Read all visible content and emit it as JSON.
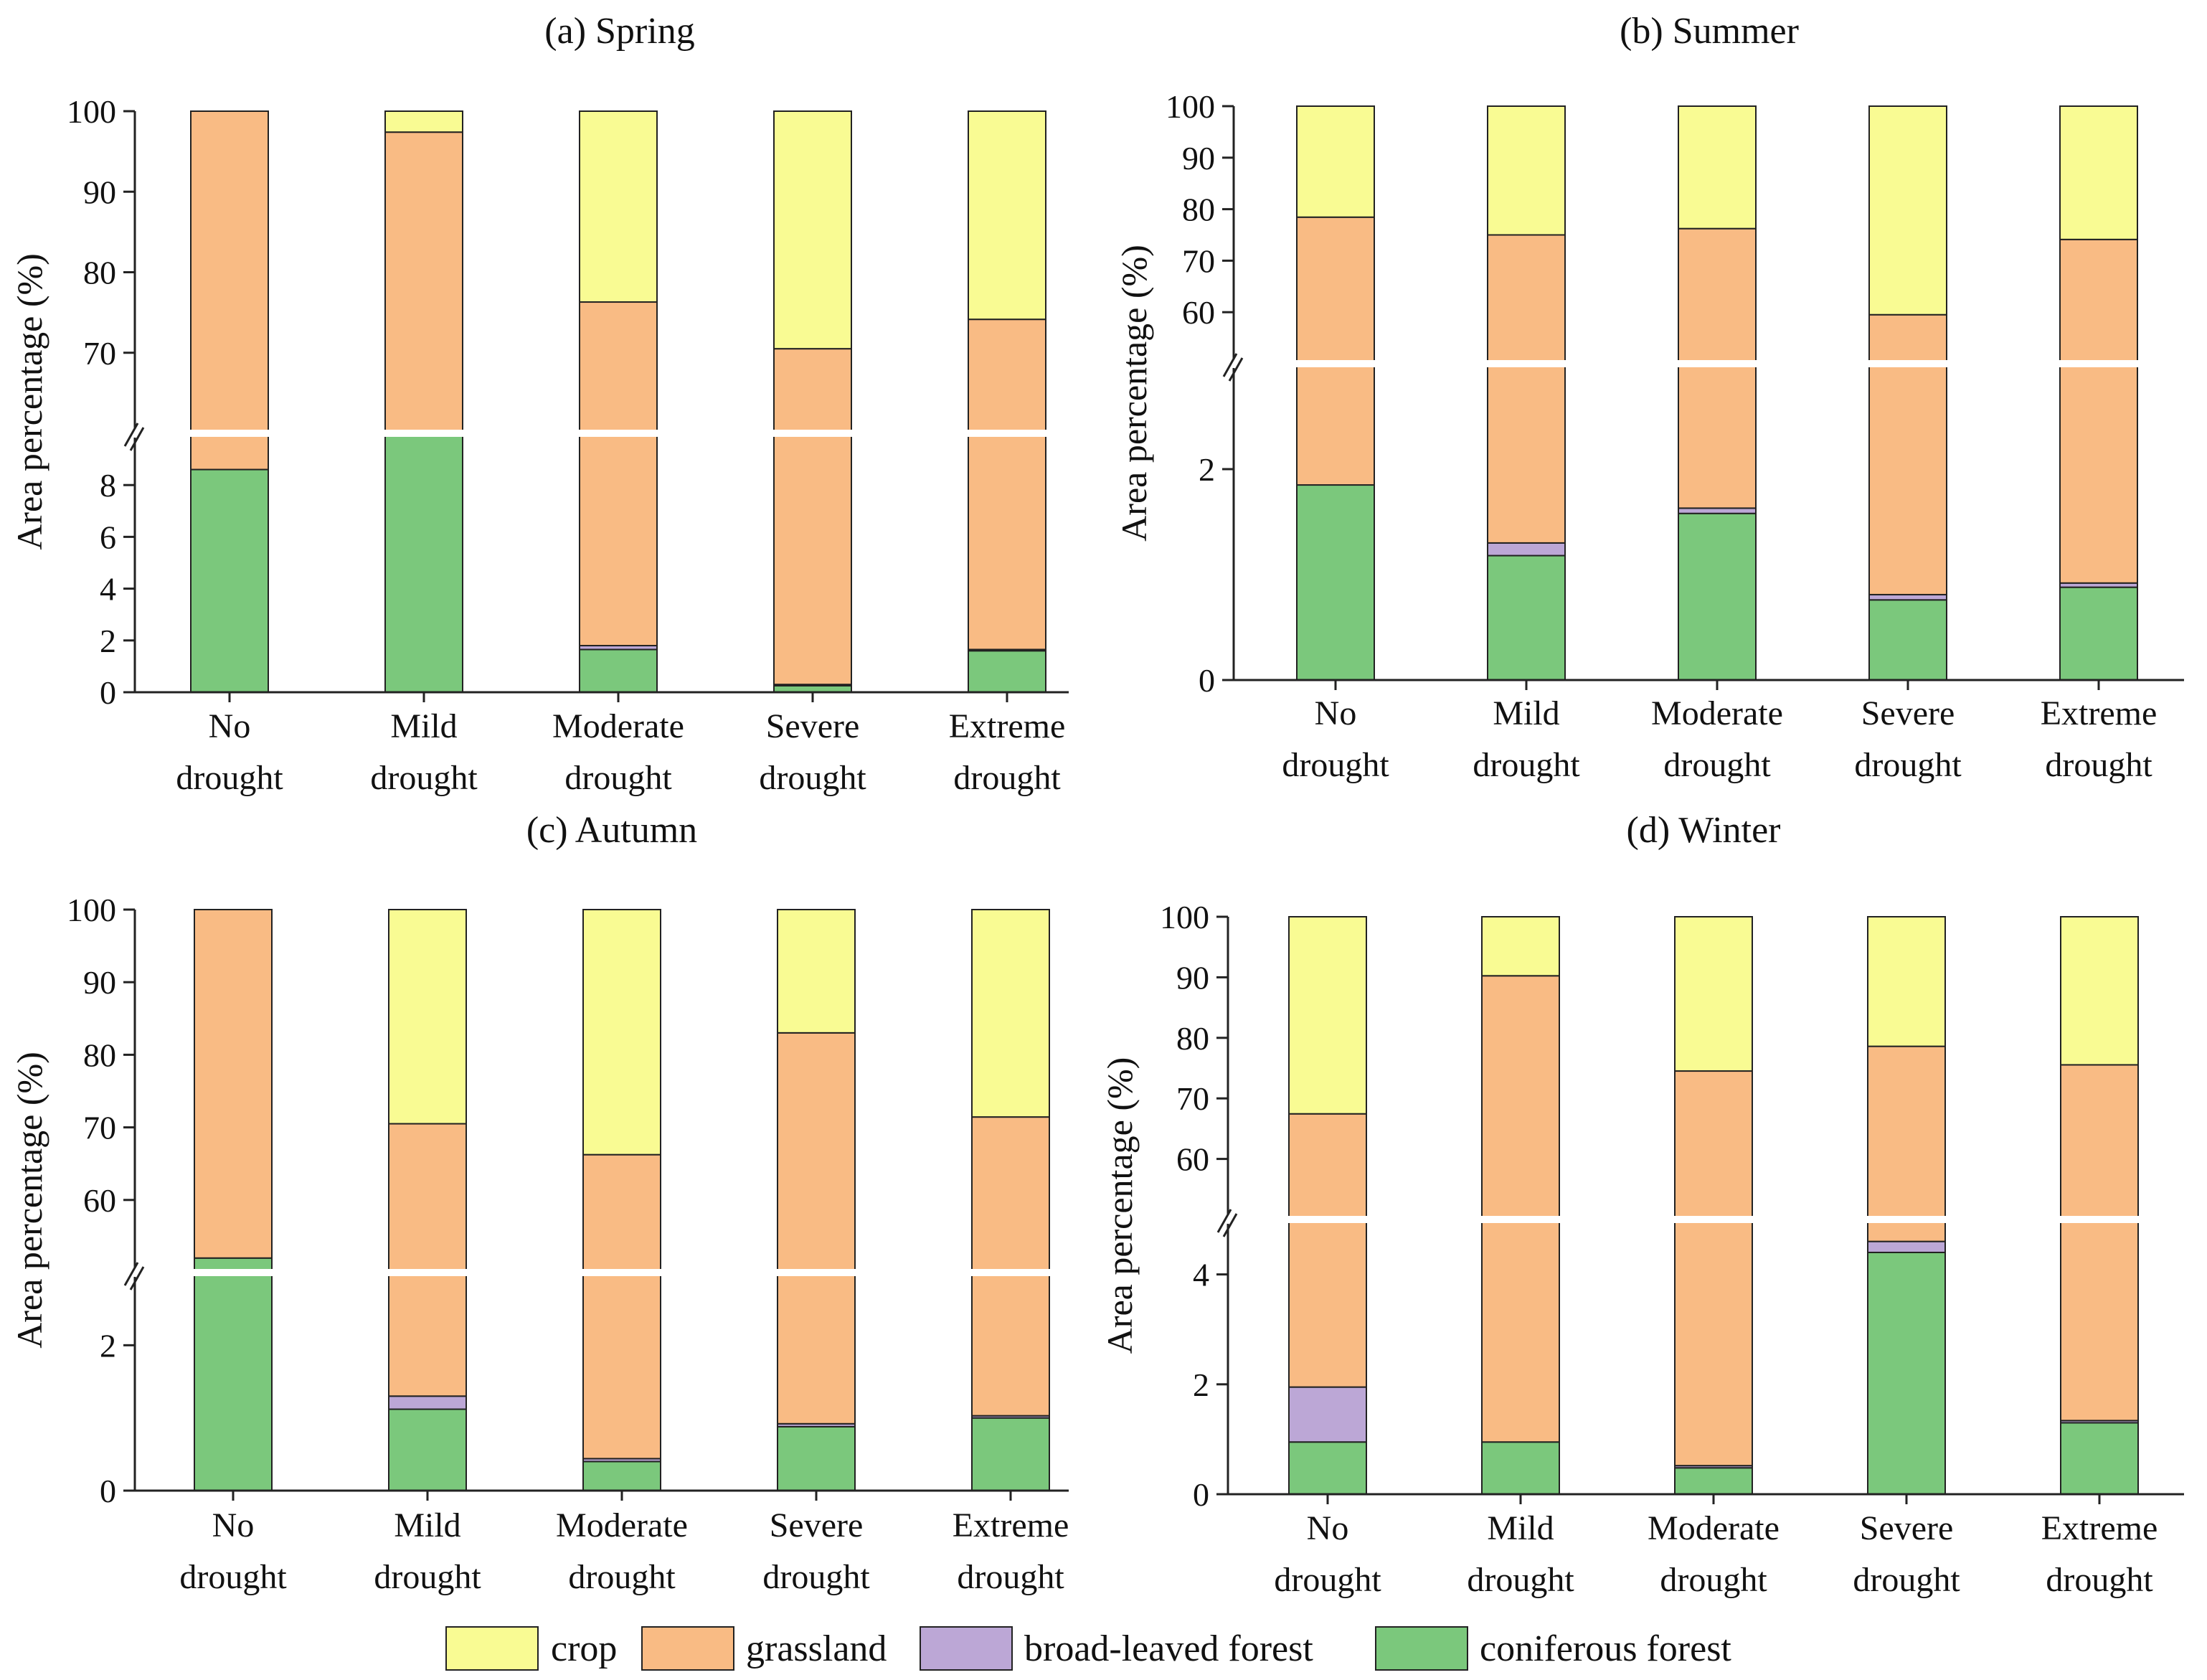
{
  "colors": {
    "crop": "#f9fb93",
    "grassland": "#f9bb84",
    "broad_leaved_forest": "#bca7d6",
    "coniferous_forest": "#7bc87c",
    "break_gap": "#ffffff",
    "stroke": "#222222"
  },
  "legend": [
    {
      "key": "crop",
      "label": "crop"
    },
    {
      "key": "grassland",
      "label": "grassland"
    },
    {
      "key": "broad_leaved_forest",
      "label": "broad-leaved forest"
    },
    {
      "key": "coniferous_forest",
      "label": "coniferous forest"
    }
  ],
  "chart_data": [
    {
      "id": "a",
      "type": "bar",
      "stacked": true,
      "broken_axis": true,
      "title": "(a) Spring",
      "ylabel": "Area percentage (%)",
      "categories": [
        [
          "No",
          "drought"
        ],
        [
          "Mild",
          "drought"
        ],
        [
          "Moderate",
          "drought"
        ],
        [
          "Severe",
          "drought"
        ],
        [
          "Extreme",
          "drought"
        ]
      ],
      "lower_range": [
        0,
        10
      ],
      "upper_range": [
        60,
        100
      ],
      "lower_ticks": [
        0,
        2,
        4,
        6,
        8
      ],
      "upper_ticks": [
        70,
        80,
        90,
        100
      ],
      "series": [
        {
          "key": "coniferous_forest",
          "name": "coniferous forest",
          "values": [
            8.6,
            59.5,
            1.65,
            0.25,
            1.6
          ]
        },
        {
          "key": "broad_leaved_forest",
          "name": "broad-leaved forest",
          "values": [
            0.0,
            0.0,
            0.15,
            0.05,
            0.05
          ]
        },
        {
          "key": "grassland",
          "name": "grassland",
          "values": [
            91.4,
            37.9,
            74.5,
            70.2,
            72.5
          ]
        },
        {
          "key": "crop",
          "name": "crop",
          "values": [
            0.0,
            2.6,
            23.7,
            29.5,
            25.85
          ]
        }
      ]
    },
    {
      "id": "b",
      "type": "bar",
      "stacked": true,
      "broken_axis": true,
      "title": "(b) Summer",
      "ylabel": "Area percentage (%)",
      "categories": [
        [
          "No",
          "drought"
        ],
        [
          "Mild",
          "drought"
        ],
        [
          "Moderate",
          "drought"
        ],
        [
          "Severe",
          "drought"
        ],
        [
          "Extreme",
          "drought"
        ]
      ],
      "lower_range": [
        0,
        3
      ],
      "upper_range": [
        50,
        100
      ],
      "lower_ticks": [
        0,
        2
      ],
      "upper_ticks": [
        60,
        70,
        80,
        90,
        100
      ],
      "series": [
        {
          "key": "coniferous_forest",
          "name": "coniferous forest",
          "values": [
            1.85,
            1.18,
            1.58,
            0.76,
            0.88
          ]
        },
        {
          "key": "broad_leaved_forest",
          "name": "broad-leaved forest",
          "values": [
            0.0,
            0.12,
            0.05,
            0.05,
            0.04
          ]
        },
        {
          "key": "grassland",
          "name": "grassland",
          "values": [
            76.6,
            73.7,
            74.6,
            58.7,
            73.2
          ]
        },
        {
          "key": "crop",
          "name": "crop",
          "values": [
            21.55,
            25.0,
            23.77,
            40.49,
            25.88
          ]
        }
      ]
    },
    {
      "id": "c",
      "type": "bar",
      "stacked": true,
      "broken_axis": true,
      "title": "(c) Autumn",
      "ylabel": "Area percentage (%)",
      "categories": [
        [
          "No",
          "drought"
        ],
        [
          "Mild",
          "drought"
        ],
        [
          "Moderate",
          "drought"
        ],
        [
          "Severe",
          "drought"
        ],
        [
          "Extreme",
          "drought"
        ]
      ],
      "lower_range": [
        0,
        3
      ],
      "upper_range": [
        50,
        100
      ],
      "lower_ticks": [
        0,
        2
      ],
      "upper_ticks": [
        60,
        70,
        80,
        90,
        100
      ],
      "series": [
        {
          "key": "coniferous_forest",
          "name": "coniferous forest",
          "values": [
            52.0,
            1.12,
            0.4,
            0.88,
            1.0
          ]
        },
        {
          "key": "broad_leaved_forest",
          "name": "broad-leaved forest",
          "values": [
            0.0,
            0.18,
            0.04,
            0.04,
            0.03
          ]
        },
        {
          "key": "grassland",
          "name": "grassland",
          "values": [
            48.0,
            69.2,
            65.8,
            82.1,
            70.4
          ]
        },
        {
          "key": "crop",
          "name": "crop",
          "values": [
            0.0,
            29.5,
            33.76,
            16.98,
            28.57
          ]
        }
      ]
    },
    {
      "id": "d",
      "type": "bar",
      "stacked": true,
      "broken_axis": true,
      "title": "(d) Winter",
      "ylabel": "Area percentage (%)",
      "categories": [
        [
          "No",
          "drought"
        ],
        [
          "Mild",
          "drought"
        ],
        [
          "Moderate",
          "drought"
        ],
        [
          "Severe",
          "drought"
        ],
        [
          "Extreme",
          "drought"
        ]
      ],
      "lower_range": [
        0,
        5
      ],
      "upper_range": [
        50,
        100
      ],
      "lower_ticks": [
        0,
        2,
        4
      ],
      "upper_ticks": [
        60,
        70,
        80,
        90,
        100
      ],
      "series": [
        {
          "key": "coniferous_forest",
          "name": "coniferous forest",
          "values": [
            0.95,
            0.95,
            0.48,
            4.4,
            1.3
          ]
        },
        {
          "key": "broad_leaved_forest",
          "name": "broad-leaved forest",
          "values": [
            1.0,
            0.0,
            0.04,
            0.2,
            0.04
          ]
        },
        {
          "key": "grassland",
          "name": "grassland",
          "values": [
            65.5,
            89.3,
            74.0,
            74.0,
            74.2
          ]
        },
        {
          "key": "crop",
          "name": "crop",
          "values": [
            32.55,
            9.75,
            25.48,
            21.4,
            24.46
          ]
        }
      ]
    }
  ]
}
